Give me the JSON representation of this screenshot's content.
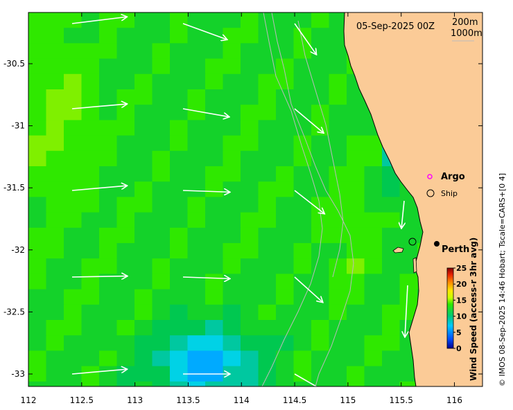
{
  "map": {
    "date": "05-Sep-2025 00Z",
    "contour_labels": [
      "200m",
      "1000m"
    ],
    "markers": {
      "argo_label": "Argo",
      "ship_label": "Ship",
      "perth_label": "Perth"
    },
    "colorbar": {
      "title": "Wind Speed (access-r 3hr avg)",
      "ticks": [
        "0",
        "5",
        "10",
        "15",
        "20",
        "25"
      ]
    },
    "credit": "© IMOS 08-Sep-2025 14:46 Hobart; Tscale=CARS+[0 4]",
    "x_ticks": [
      "112",
      "112.5",
      "113",
      "113.5",
      "114",
      "114.5",
      "115",
      "115.5",
      "116"
    ],
    "y_ticks": [
      "-30.5",
      "-31",
      "-31.5",
      "-32",
      "-32.5",
      "-33"
    ],
    "wind_speed_colors": {
      "light_green": "#7ff000",
      "green": "#2fe800",
      "mid_green": "#14d22a",
      "dark_green": "#00c850",
      "teal": "#00c8a0",
      "cyan": "#00d2e6",
      "blue": "#00aaff"
    }
  }
}
